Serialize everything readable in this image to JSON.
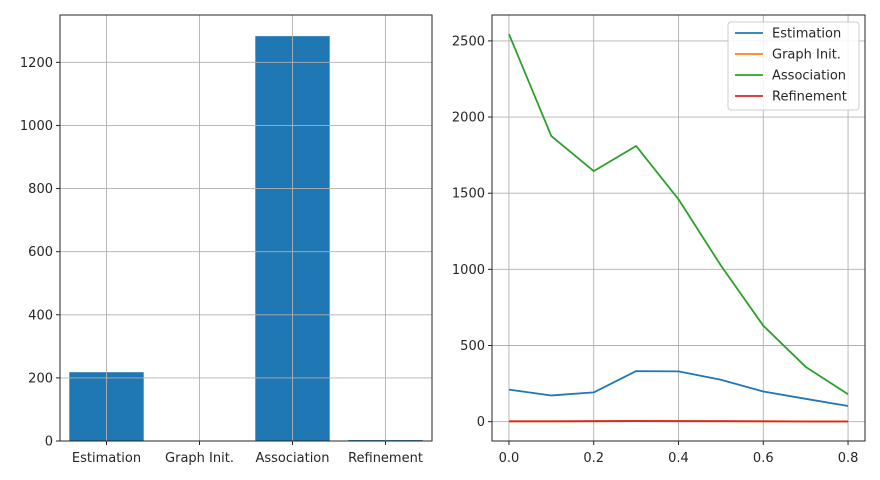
{
  "chart_data": [
    {
      "type": "bar",
      "categories": [
        "Estimation",
        "Graph Init.",
        "Association",
        "Refinement"
      ],
      "values": [
        218,
        0.5,
        1283,
        3
      ],
      "ylim": [
        0,
        1350
      ],
      "yticks": [
        0,
        200,
        400,
        600,
        800,
        1000,
        1200
      ],
      "grid": true,
      "color": "#1f77b4"
    },
    {
      "type": "line",
      "x": [
        0.0,
        0.1,
        0.2,
        0.3,
        0.4,
        0.5,
        0.6,
        0.7,
        0.8
      ],
      "series": [
        {
          "name": "Estimation",
          "color": "#1f77b4",
          "values": [
            210,
            172,
            192,
            332,
            330,
            275,
            198,
            150,
            103
          ]
        },
        {
          "name": "Graph Init.",
          "color": "#ff7f0e",
          "values": [
            3,
            3,
            3,
            4,
            4,
            3,
            3,
            2,
            2
          ]
        },
        {
          "name": "Association",
          "color": "#2ca02c",
          "values": [
            2545,
            1875,
            1645,
            1810,
            1460,
            1025,
            630,
            360,
            180
          ]
        },
        {
          "name": "Refinement",
          "color": "#d62728",
          "values": [
            2,
            2,
            3,
            4,
            3,
            3,
            2,
            1,
            1
          ]
        }
      ],
      "xlim": [
        -0.04,
        0.84
      ],
      "ylim": [
        -127,
        2670
      ],
      "xticks": [
        "0.0",
        "0.2",
        "0.4",
        "0.6",
        "0.8"
      ],
      "yticks": [
        0,
        500,
        1000,
        1500,
        2000,
        2500
      ],
      "grid": true,
      "legend": "top-right"
    }
  ]
}
